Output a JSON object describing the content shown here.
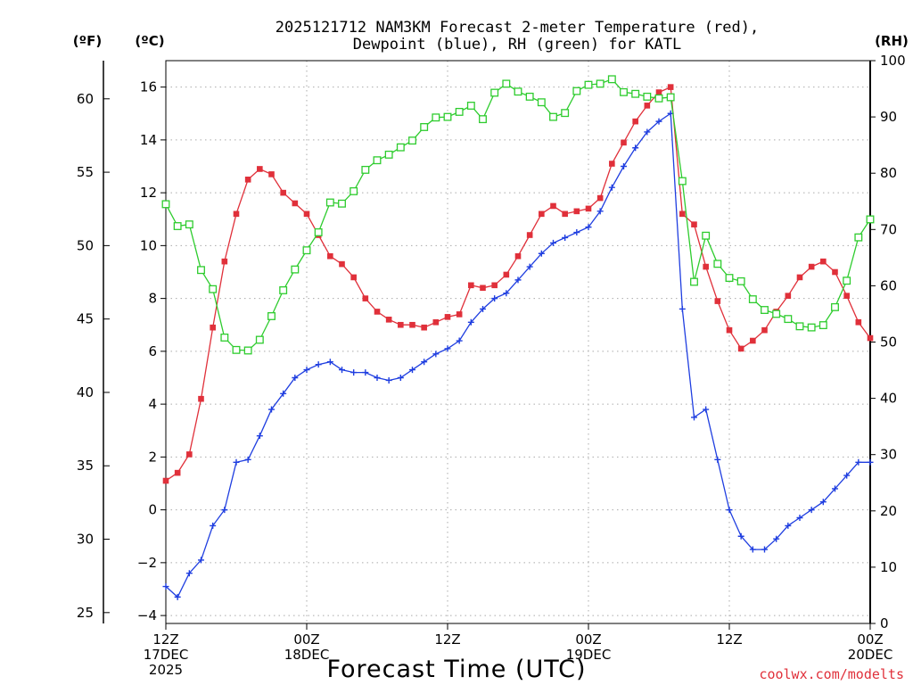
{
  "chart_data": {
    "type": "line",
    "title_line1": "2025121712 NAM3KM Forecast 2-meter Temperature (red),",
    "title_line2": "Dewpoint (blue), RH (green) for KATL",
    "xlabel": "Forecast Time (UTC)",
    "credit": "coolwx.com/modelts",
    "units": {
      "f": "(ºF)",
      "c": "(ºC)",
      "rh": "(RH)"
    },
    "x_hours_range": [
      0,
      60
    ],
    "x_ticks": [
      {
        "h": 0,
        "line1": "12Z",
        "line2": "17DEC",
        "line3": "2025"
      },
      {
        "h": 12,
        "line1": "00Z",
        "line2": "18DEC",
        "line3": ""
      },
      {
        "h": 24,
        "line1": "12Z",
        "line2": "",
        "line3": ""
      },
      {
        "h": 36,
        "line1": "00Z",
        "line2": "19DEC",
        "line3": ""
      },
      {
        "h": 48,
        "line1": "12Z",
        "line2": "",
        "line3": ""
      },
      {
        "h": 60,
        "line1": "00Z",
        "line2": "20DEC",
        "line3": ""
      }
    ],
    "y_c_range": [
      -4.3,
      17.0
    ],
    "y_c_ticks": [
      "−4",
      "−2",
      "0",
      "2",
      "4",
      "6",
      "8",
      "10",
      "12",
      "14",
      "16"
    ],
    "y_f_ticks": [
      "25",
      "30",
      "35",
      "40",
      "45",
      "50",
      "55",
      "60"
    ],
    "y_rh_range": [
      0,
      100
    ],
    "y_rh_ticks": [
      "0",
      "10",
      "20",
      "30",
      "40",
      "50",
      "60",
      "70",
      "80",
      "90",
      "100"
    ],
    "series": [
      {
        "name": "2-meter Temperature",
        "axis": "celsius",
        "color": "#e0303a",
        "marker": "filled-square",
        "points": [
          [
            0,
            1.1
          ],
          [
            1,
            1.4
          ],
          [
            2,
            2.1
          ],
          [
            3,
            4.2
          ],
          [
            4,
            6.9
          ],
          [
            5,
            9.4
          ],
          [
            6,
            11.2
          ],
          [
            7,
            12.5
          ],
          [
            8,
            12.9
          ],
          [
            9,
            12.7
          ],
          [
            10,
            12.0
          ],
          [
            11,
            11.6
          ],
          [
            12,
            11.2
          ],
          [
            13,
            10.4
          ],
          [
            14,
            9.6
          ],
          [
            15,
            9.3
          ],
          [
            16,
            8.8
          ],
          [
            17,
            8.0
          ],
          [
            18,
            7.5
          ],
          [
            19,
            7.2
          ],
          [
            20,
            7.0
          ],
          [
            21,
            7.0
          ],
          [
            22,
            6.9
          ],
          [
            23,
            7.1
          ],
          [
            24,
            7.3
          ],
          [
            25,
            7.4
          ],
          [
            26,
            8.5
          ],
          [
            27,
            8.4
          ],
          [
            28,
            8.5
          ],
          [
            29,
            8.9
          ],
          [
            30,
            9.6
          ],
          [
            31,
            10.4
          ],
          [
            32,
            11.2
          ],
          [
            33,
            11.5
          ],
          [
            34,
            11.2
          ],
          [
            35,
            11.3
          ],
          [
            36,
            11.4
          ],
          [
            37,
            11.8
          ],
          [
            38,
            13.1
          ],
          [
            39,
            13.9
          ],
          [
            40,
            14.7
          ],
          [
            41,
            15.3
          ],
          [
            42,
            15.8
          ],
          [
            43,
            16.0
          ],
          [
            44,
            11.2
          ],
          [
            45,
            10.8
          ],
          [
            46,
            9.2
          ],
          [
            47,
            7.9
          ],
          [
            48,
            6.8
          ],
          [
            49,
            6.1
          ],
          [
            50,
            6.4
          ],
          [
            51,
            6.8
          ],
          [
            52,
            7.5
          ],
          [
            53,
            8.1
          ],
          [
            54,
            8.8
          ],
          [
            55,
            9.2
          ],
          [
            56,
            9.4
          ],
          [
            57,
            9.0
          ],
          [
            58,
            8.1
          ],
          [
            59,
            7.1
          ],
          [
            60,
            6.5
          ]
        ]
      },
      {
        "name": "Dewpoint",
        "axis": "celsius",
        "color": "#1f3ee0",
        "marker": "plus",
        "points": [
          [
            0,
            -2.9
          ],
          [
            1,
            -3.3
          ],
          [
            2,
            -2.4
          ],
          [
            3,
            -1.9
          ],
          [
            4,
            -0.6
          ],
          [
            5,
            0.0
          ],
          [
            6,
            1.8
          ],
          [
            7,
            1.9
          ],
          [
            8,
            2.8
          ],
          [
            9,
            3.8
          ],
          [
            10,
            4.4
          ],
          [
            11,
            5.0
          ],
          [
            12,
            5.3
          ],
          [
            13,
            5.5
          ],
          [
            14,
            5.6
          ],
          [
            15,
            5.3
          ],
          [
            16,
            5.2
          ],
          [
            17,
            5.2
          ],
          [
            18,
            5.0
          ],
          [
            19,
            4.9
          ],
          [
            20,
            5.0
          ],
          [
            21,
            5.3
          ],
          [
            22,
            5.6
          ],
          [
            23,
            5.9
          ],
          [
            24,
            6.1
          ],
          [
            25,
            6.4
          ],
          [
            26,
            7.1
          ],
          [
            27,
            7.6
          ],
          [
            28,
            8.0
          ],
          [
            29,
            8.2
          ],
          [
            30,
            8.7
          ],
          [
            31,
            9.2
          ],
          [
            32,
            9.7
          ],
          [
            33,
            10.1
          ],
          [
            34,
            10.3
          ],
          [
            35,
            10.5
          ],
          [
            36,
            10.7
          ],
          [
            37,
            11.3
          ],
          [
            38,
            12.2
          ],
          [
            39,
            13.0
          ],
          [
            40,
            13.7
          ],
          [
            41,
            14.3
          ],
          [
            42,
            14.7
          ],
          [
            43,
            15.0
          ],
          [
            44,
            7.6
          ],
          [
            45,
            3.5
          ],
          [
            46,
            3.8
          ],
          [
            47,
            1.9
          ],
          [
            48,
            0.0
          ],
          [
            49,
            -1.0
          ],
          [
            50,
            -1.5
          ],
          [
            51,
            -1.5
          ],
          [
            52,
            -1.1
          ],
          [
            53,
            -0.6
          ],
          [
            54,
            -0.3
          ],
          [
            55,
            0.0
          ],
          [
            56,
            0.3
          ],
          [
            57,
            0.8
          ],
          [
            58,
            1.3
          ],
          [
            59,
            1.8
          ],
          [
            60,
            1.8
          ]
        ]
      },
      {
        "name": "RH",
        "axis": "rh",
        "color": "#2ecc2e",
        "marker": "open-square",
        "points": [
          [
            0,
            74.5
          ],
          [
            1,
            70.6
          ],
          [
            2,
            70.9
          ],
          [
            3,
            62.8
          ],
          [
            4,
            59.4
          ],
          [
            5,
            50.8
          ],
          [
            6,
            48.6
          ],
          [
            7,
            48.5
          ],
          [
            8,
            50.4
          ],
          [
            9,
            54.6
          ],
          [
            10,
            59.2
          ],
          [
            11,
            62.9
          ],
          [
            12,
            66.3
          ],
          [
            13,
            69.5
          ],
          [
            14,
            74.8
          ],
          [
            15,
            74.6
          ],
          [
            16,
            76.8
          ],
          [
            17,
            80.6
          ],
          [
            18,
            82.3
          ],
          [
            19,
            83.3
          ],
          [
            20,
            84.6
          ],
          [
            21,
            85.8
          ],
          [
            22,
            88.2
          ],
          [
            23,
            89.9
          ],
          [
            24,
            90.0
          ],
          [
            25,
            90.9
          ],
          [
            26,
            92.0
          ],
          [
            27,
            89.6
          ],
          [
            28,
            94.3
          ],
          [
            29,
            95.9
          ],
          [
            30,
            94.5
          ],
          [
            31,
            93.6
          ],
          [
            32,
            92.6
          ],
          [
            33,
            90.0
          ],
          [
            34,
            90.7
          ],
          [
            35,
            94.6
          ],
          [
            36,
            95.7
          ],
          [
            37,
            95.9
          ],
          [
            38,
            96.7
          ],
          [
            39,
            94.4
          ],
          [
            40,
            94.1
          ],
          [
            41,
            93.6
          ],
          [
            42,
            93.3
          ],
          [
            43,
            93.5
          ],
          [
            44,
            78.6
          ],
          [
            45,
            60.7
          ],
          [
            46,
            68.9
          ],
          [
            47,
            63.9
          ],
          [
            48,
            61.4
          ],
          [
            49,
            60.8
          ],
          [
            50,
            57.6
          ],
          [
            51,
            55.7
          ],
          [
            52,
            55.0
          ],
          [
            53,
            54.1
          ],
          [
            54,
            52.8
          ],
          [
            55,
            52.6
          ],
          [
            56,
            53.0
          ],
          [
            57,
            56.2
          ],
          [
            58,
            60.9
          ],
          [
            59,
            68.6
          ],
          [
            60,
            71.8
          ]
        ]
      }
    ]
  }
}
